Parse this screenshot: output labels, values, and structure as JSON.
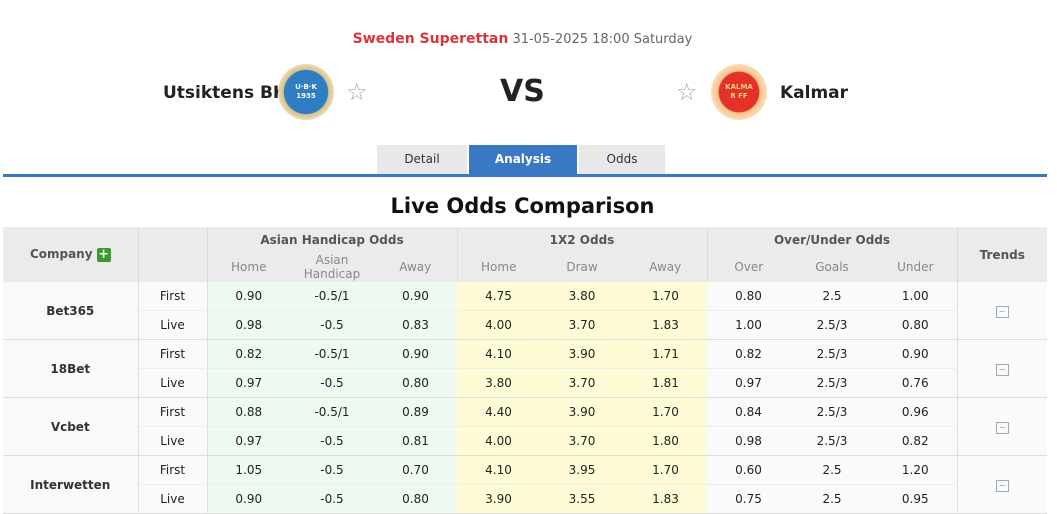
{
  "match": {
    "league": "Sweden Superettan",
    "datetime": "31-05-2025 18:00 Saturday",
    "home_team": "Utsiktens BK",
    "away_team": "Kalmar",
    "vs": "VS",
    "home_logo_text": "U·B·K 1935",
    "away_logo_text": "KALMAR FF"
  },
  "tabs": [
    {
      "label": "Detail"
    },
    {
      "label": "Analysis",
      "active": true
    },
    {
      "label": "Odds"
    }
  ],
  "section_title": "Live Odds Comparison",
  "table": {
    "headers": {
      "company": "Company",
      "asian": "Asian Handicap Odds",
      "x12": "1X2 Odds",
      "ou": "Over/Under Odds",
      "trends": "Trends"
    },
    "sub": {
      "ah": [
        "Home",
        "Asian Handicap",
        "Away"
      ],
      "x12": [
        "Home",
        "Draw",
        "Away"
      ],
      "ou": [
        "Over",
        "Goals",
        "Under"
      ]
    },
    "rows": [
      {
        "company": "Bet365",
        "lines": [
          {
            "type": "First",
            "ah": [
              "0.90",
              "-0.5/1",
              "0.90"
            ],
            "x12": [
              "4.75",
              "3.80",
              "1.70"
            ],
            "ou": [
              "0.80",
              "2.5",
              "1.00"
            ]
          },
          {
            "type": "Live",
            "ah": [
              "0.98",
              "-0.5",
              "0.83"
            ],
            "x12": [
              "4.00",
              "3.70",
              "1.83"
            ],
            "ou": [
              "1.00",
              "2.5/3",
              "0.80"
            ]
          }
        ]
      },
      {
        "company": "18Bet",
        "lines": [
          {
            "type": "First",
            "ah": [
              "0.82",
              "-0.5/1",
              "0.90"
            ],
            "x12": [
              "4.10",
              "3.90",
              "1.71"
            ],
            "ou": [
              "0.82",
              "2.5/3",
              "0.90"
            ]
          },
          {
            "type": "Live",
            "ah": [
              "0.97",
              "-0.5",
              "0.80"
            ],
            "x12": [
              "3.80",
              "3.70",
              "1.81"
            ],
            "ou": [
              "0.97",
              "2.5/3",
              "0.76"
            ]
          }
        ]
      },
      {
        "company": "Vcbet",
        "lines": [
          {
            "type": "First",
            "ah": [
              "0.88",
              "-0.5/1",
              "0.89"
            ],
            "x12": [
              "4.40",
              "3.90",
              "1.70"
            ],
            "ou": [
              "0.84",
              "2.5/3",
              "0.96"
            ]
          },
          {
            "type": "Live",
            "ah": [
              "0.97",
              "-0.5",
              "0.81"
            ],
            "x12": [
              "4.00",
              "3.70",
              "1.80"
            ],
            "ou": [
              "0.98",
              "2.5/3",
              "0.82"
            ]
          }
        ]
      },
      {
        "company": "Interwetten",
        "lines": [
          {
            "type": "First",
            "ah": [
              "1.05",
              "-0.5",
              "0.70"
            ],
            "x12": [
              "4.10",
              "3.95",
              "1.70"
            ],
            "ou": [
              "0.60",
              "2.5",
              "1.20"
            ]
          },
          {
            "type": "Live",
            "ah": [
              "0.90",
              "-0.5",
              "0.80"
            ],
            "x12": [
              "3.90",
              "3.55",
              "1.83"
            ],
            "ou": [
              "0.75",
              "2.5",
              "0.95"
            ]
          }
        ]
      }
    ]
  },
  "colors": {
    "league": "#d9343a",
    "accent": "#3b78c3",
    "ah_bg": "#eefaf0",
    "x12_bg": "#fdfcd6",
    "plus": "#3a9a2e"
  }
}
